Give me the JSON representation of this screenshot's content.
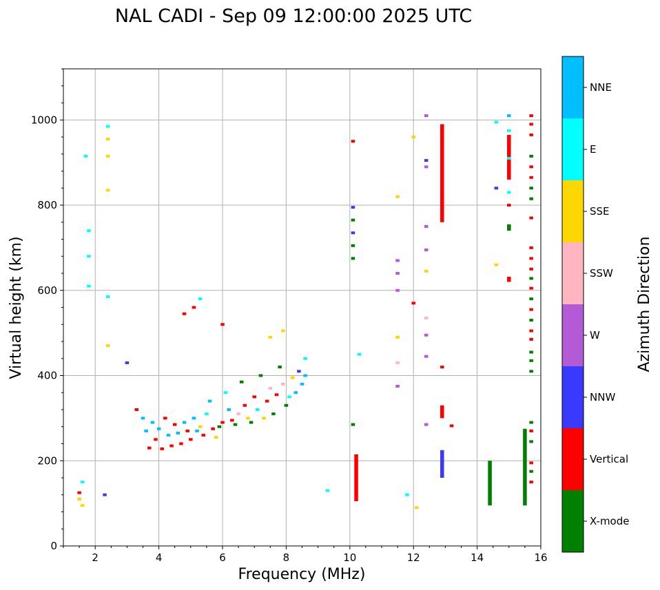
{
  "chart_data": {
    "type": "scatter",
    "title": "NAL CADI - Sep 09 12:00:00 2025 UTC",
    "xlabel": "Frequency (MHz)",
    "ylabel": "Virtual height (km)",
    "xlim": [
      1,
      16
    ],
    "ylim": [
      0,
      1120
    ],
    "xticks": [
      2,
      4,
      6,
      8,
      10,
      12,
      14,
      16
    ],
    "yticks": [
      0,
      200,
      400,
      600,
      800,
      1000
    ],
    "grid": true,
    "colorbar": {
      "title": "Azimuth Direction",
      "position": "right",
      "categories": [
        {
          "name": "X-mode",
          "color": "#008000"
        },
        {
          "name": "Vertical",
          "color": "#ff0000"
        },
        {
          "name": "NNW",
          "color": "#3a3aff"
        },
        {
          "name": "W",
          "color": "#b35ad6"
        },
        {
          "name": "SSW",
          "color": "#ffb6c1"
        },
        {
          "name": "SSE",
          "color": "#ffd700"
        },
        {
          "name": "E",
          "color": "#00ffff"
        },
        {
          "name": "NNE",
          "color": "#00bfff"
        }
      ]
    },
    "columns": [
      {
        "f": 10.2,
        "h0": 105,
        "h1": 215,
        "cat": "Vertical"
      },
      {
        "f": 12.9,
        "h0": 760,
        "h1": 990,
        "cat": "Vertical"
      },
      {
        "f": 12.9,
        "h0": 300,
        "h1": 330,
        "cat": "Vertical"
      },
      {
        "f": 12.9,
        "h0": 160,
        "h1": 225,
        "cat": "NNW"
      },
      {
        "f": 15.0,
        "h0": 860,
        "h1": 965,
        "cat": "Vertical"
      },
      {
        "f": 15.0,
        "h0": 740,
        "h1": 755,
        "cat": "X-mode"
      },
      {
        "f": 15.0,
        "h0": 620,
        "h1": 632,
        "cat": "Vertical"
      },
      {
        "f": 15.5,
        "h0": 95,
        "h1": 275,
        "cat": "X-mode"
      },
      {
        "f": 14.4,
        "h0": 95,
        "h1": 200,
        "cat": "X-mode"
      }
    ],
    "points": [
      {
        "f": 1.5,
        "h": 110,
        "cat": "SSE"
      },
      {
        "f": 1.5,
        "h": 125,
        "cat": "Vertical"
      },
      {
        "f": 1.6,
        "h": 95,
        "cat": "SSE"
      },
      {
        "f": 1.6,
        "h": 150,
        "cat": "E"
      },
      {
        "f": 1.7,
        "h": 915,
        "cat": "E"
      },
      {
        "f": 1.8,
        "h": 610,
        "cat": "E"
      },
      {
        "f": 1.8,
        "h": 680,
        "cat": "E"
      },
      {
        "f": 1.8,
        "h": 740,
        "cat": "E"
      },
      {
        "f": 2.3,
        "h": 120,
        "cat": "NNW"
      },
      {
        "f": 2.4,
        "h": 470,
        "cat": "SSE"
      },
      {
        "f": 2.4,
        "h": 585,
        "cat": "E"
      },
      {
        "f": 2.4,
        "h": 835,
        "cat": "SSE"
      },
      {
        "f": 2.4,
        "h": 915,
        "cat": "SSE"
      },
      {
        "f": 2.4,
        "h": 955,
        "cat": "SSE"
      },
      {
        "f": 2.4,
        "h": 985,
        "cat": "E"
      },
      {
        "f": 3.0,
        "h": 430,
        "cat": "NNW"
      },
      {
        "f": 3.3,
        "h": 320,
        "cat": "Vertical"
      },
      {
        "f": 3.5,
        "h": 300,
        "cat": "NNE"
      },
      {
        "f": 3.6,
        "h": 270,
        "cat": "NNE"
      },
      {
        "f": 3.7,
        "h": 230,
        "cat": "Vertical"
      },
      {
        "f": 3.8,
        "h": 290,
        "cat": "NNE"
      },
      {
        "f": 3.9,
        "h": 250,
        "cat": "Vertical"
      },
      {
        "f": 4.0,
        "h": 275,
        "cat": "NNE"
      },
      {
        "f": 4.1,
        "h": 228,
        "cat": "Vertical"
      },
      {
        "f": 4.2,
        "h": 300,
        "cat": "Vertical"
      },
      {
        "f": 4.3,
        "h": 260,
        "cat": "NNE"
      },
      {
        "f": 4.4,
        "h": 235,
        "cat": "Vertical"
      },
      {
        "f": 4.5,
        "h": 285,
        "cat": "Vertical"
      },
      {
        "f": 4.6,
        "h": 265,
        "cat": "NNE"
      },
      {
        "f": 4.7,
        "h": 240,
        "cat": "Vertical"
      },
      {
        "f": 4.8,
        "h": 290,
        "cat": "NNE"
      },
      {
        "f": 4.9,
        "h": 270,
        "cat": "Vertical"
      },
      {
        "f": 5.0,
        "h": 250,
        "cat": "Vertical"
      },
      {
        "f": 5.1,
        "h": 300,
        "cat": "NNE"
      },
      {
        "f": 5.2,
        "h": 270,
        "cat": "NNE"
      },
      {
        "f": 5.3,
        "h": 280,
        "cat": "SSE"
      },
      {
        "f": 5.4,
        "h": 260,
        "cat": "Vertical"
      },
      {
        "f": 5.5,
        "h": 310,
        "cat": "E"
      },
      {
        "f": 5.6,
        "h": 340,
        "cat": "NNE"
      },
      {
        "f": 5.7,
        "h": 275,
        "cat": "Vertical"
      },
      {
        "f": 5.8,
        "h": 255,
        "cat": "SSE"
      },
      {
        "f": 5.9,
        "h": 280,
        "cat": "X-mode"
      },
      {
        "f": 6.0,
        "h": 290,
        "cat": "Vertical"
      },
      {
        "f": 6.1,
        "h": 360,
        "cat": "E"
      },
      {
        "f": 6.2,
        "h": 320,
        "cat": "NNE"
      },
      {
        "f": 6.3,
        "h": 295,
        "cat": "Vertical"
      },
      {
        "f": 6.4,
        "h": 285,
        "cat": "X-mode"
      },
      {
        "f": 6.5,
        "h": 310,
        "cat": "SSW"
      },
      {
        "f": 6.6,
        "h": 385,
        "cat": "X-mode"
      },
      {
        "f": 6.7,
        "h": 330,
        "cat": "Vertical"
      },
      {
        "f": 6.8,
        "h": 300,
        "cat": "SSE"
      },
      {
        "f": 6.9,
        "h": 290,
        "cat": "X-mode"
      },
      {
        "f": 7.0,
        "h": 350,
        "cat": "Vertical"
      },
      {
        "f": 7.1,
        "h": 320,
        "cat": "E"
      },
      {
        "f": 7.2,
        "h": 400,
        "cat": "X-mode"
      },
      {
        "f": 7.3,
        "h": 300,
        "cat": "SSE"
      },
      {
        "f": 7.4,
        "h": 340,
        "cat": "Vertical"
      },
      {
        "f": 7.5,
        "h": 370,
        "cat": "SSW"
      },
      {
        "f": 7.6,
        "h": 310,
        "cat": "X-mode"
      },
      {
        "f": 7.7,
        "h": 355,
        "cat": "Vertical"
      },
      {
        "f": 7.8,
        "h": 420,
        "cat": "X-mode"
      },
      {
        "f": 7.9,
        "h": 380,
        "cat": "SSW"
      },
      {
        "f": 8.0,
        "h": 330,
        "cat": "X-mode"
      },
      {
        "f": 8.1,
        "h": 350,
        "cat": "E"
      },
      {
        "f": 8.2,
        "h": 395,
        "cat": "SSE"
      },
      {
        "f": 8.3,
        "h": 360,
        "cat": "NNE"
      },
      {
        "f": 8.4,
        "h": 410,
        "cat": "NNW"
      },
      {
        "f": 8.5,
        "h": 380,
        "cat": "NNE"
      },
      {
        "f": 8.6,
        "h": 440,
        "cat": "E"
      },
      {
        "f": 8.6,
        "h": 400,
        "cat": "NNE"
      },
      {
        "f": 5.3,
        "h": 580,
        "cat": "E"
      },
      {
        "f": 4.8,
        "h": 545,
        "cat": "Vertical"
      },
      {
        "f": 5.1,
        "h": 560,
        "cat": "Vertical"
      },
      {
        "f": 6.0,
        "h": 520,
        "cat": "Vertical"
      },
      {
        "f": 7.5,
        "h": 490,
        "cat": "SSE"
      },
      {
        "f": 7.9,
        "h": 505,
        "cat": "SSE"
      },
      {
        "f": 9.3,
        "h": 130,
        "cat": "E"
      },
      {
        "f": 10.1,
        "h": 950,
        "cat": "Vertical"
      },
      {
        "f": 10.1,
        "h": 795,
        "cat": "NNW"
      },
      {
        "f": 10.1,
        "h": 765,
        "cat": "X-mode"
      },
      {
        "f": 10.1,
        "h": 735,
        "cat": "NNW"
      },
      {
        "f": 10.1,
        "h": 705,
        "cat": "X-mode"
      },
      {
        "f": 10.1,
        "h": 675,
        "cat": "X-mode"
      },
      {
        "f": 10.1,
        "h": 285,
        "cat": "X-mode"
      },
      {
        "f": 10.3,
        "h": 450,
        "cat": "E"
      },
      {
        "f": 11.5,
        "h": 820,
        "cat": "SSE"
      },
      {
        "f": 11.5,
        "h": 670,
        "cat": "W"
      },
      {
        "f": 11.5,
        "h": 640,
        "cat": "W"
      },
      {
        "f": 11.5,
        "h": 600,
        "cat": "W"
      },
      {
        "f": 11.5,
        "h": 490,
        "cat": "SSE"
      },
      {
        "f": 11.5,
        "h": 430,
        "cat": "SSW"
      },
      {
        "f": 11.5,
        "h": 375,
        "cat": "W"
      },
      {
        "f": 11.8,
        "h": 120,
        "cat": "E"
      },
      {
        "f": 12.0,
        "h": 960,
        "cat": "SSE"
      },
      {
        "f": 12.0,
        "h": 570,
        "cat": "Vertical"
      },
      {
        "f": 12.1,
        "h": 90,
        "cat": "SSE"
      },
      {
        "f": 12.4,
        "h": 1010,
        "cat": "W"
      },
      {
        "f": 12.4,
        "h": 905,
        "cat": "NNW"
      },
      {
        "f": 12.4,
        "h": 890,
        "cat": "W"
      },
      {
        "f": 12.4,
        "h": 750,
        "cat": "W"
      },
      {
        "f": 12.4,
        "h": 695,
        "cat": "W"
      },
      {
        "f": 12.4,
        "h": 645,
        "cat": "SSE"
      },
      {
        "f": 12.4,
        "h": 535,
        "cat": "SSW"
      },
      {
        "f": 12.4,
        "h": 495,
        "cat": "W"
      },
      {
        "f": 12.4,
        "h": 445,
        "cat": "W"
      },
      {
        "f": 12.4,
        "h": 285,
        "cat": "W"
      },
      {
        "f": 12.9,
        "h": 420,
        "cat": "Vertical"
      },
      {
        "f": 13.2,
        "h": 282,
        "cat": "Vertical"
      },
      {
        "f": 14.6,
        "h": 995,
        "cat": "E"
      },
      {
        "f": 14.6,
        "h": 840,
        "cat": "NNW"
      },
      {
        "f": 14.6,
        "h": 660,
        "cat": "SSE"
      },
      {
        "f": 15.0,
        "h": 1010,
        "cat": "NNE"
      },
      {
        "f": 15.0,
        "h": 975,
        "cat": "E"
      },
      {
        "f": 15.0,
        "h": 910,
        "cat": "E"
      },
      {
        "f": 15.0,
        "h": 830,
        "cat": "E"
      },
      {
        "f": 15.0,
        "h": 800,
        "cat": "Vertical"
      },
      {
        "f": 15.7,
        "h": 1010,
        "cat": "Vertical"
      },
      {
        "f": 15.7,
        "h": 990,
        "cat": "Vertical"
      },
      {
        "f": 15.7,
        "h": 965,
        "cat": "Vertical"
      },
      {
        "f": 15.7,
        "h": 915,
        "cat": "X-mode"
      },
      {
        "f": 15.7,
        "h": 890,
        "cat": "Vertical"
      },
      {
        "f": 15.7,
        "h": 865,
        "cat": "Vertical"
      },
      {
        "f": 15.7,
        "h": 840,
        "cat": "X-mode"
      },
      {
        "f": 15.7,
        "h": 815,
        "cat": "X-mode"
      },
      {
        "f": 15.7,
        "h": 770,
        "cat": "Vertical"
      },
      {
        "f": 15.7,
        "h": 700,
        "cat": "Vertical"
      },
      {
        "f": 15.7,
        "h": 675,
        "cat": "Vertical"
      },
      {
        "f": 15.7,
        "h": 650,
        "cat": "Vertical"
      },
      {
        "f": 15.7,
        "h": 628,
        "cat": "X-mode"
      },
      {
        "f": 15.7,
        "h": 605,
        "cat": "Vertical"
      },
      {
        "f": 15.7,
        "h": 580,
        "cat": "X-mode"
      },
      {
        "f": 15.7,
        "h": 555,
        "cat": "Vertical"
      },
      {
        "f": 15.7,
        "h": 530,
        "cat": "X-mode"
      },
      {
        "f": 15.7,
        "h": 505,
        "cat": "Vertical"
      },
      {
        "f": 15.7,
        "h": 485,
        "cat": "Vertical"
      },
      {
        "f": 15.7,
        "h": 455,
        "cat": "X-mode"
      },
      {
        "f": 15.7,
        "h": 435,
        "cat": "X-mode"
      },
      {
        "f": 15.7,
        "h": 410,
        "cat": "X-mode"
      },
      {
        "f": 15.7,
        "h": 290,
        "cat": "X-mode"
      },
      {
        "f": 15.7,
        "h": 270,
        "cat": "Vertical"
      },
      {
        "f": 15.7,
        "h": 245,
        "cat": "X-mode"
      },
      {
        "f": 15.7,
        "h": 195,
        "cat": "Vertical"
      },
      {
        "f": 15.7,
        "h": 175,
        "cat": "X-mode"
      },
      {
        "f": 15.7,
        "h": 150,
        "cat": "Vertical"
      }
    ]
  }
}
